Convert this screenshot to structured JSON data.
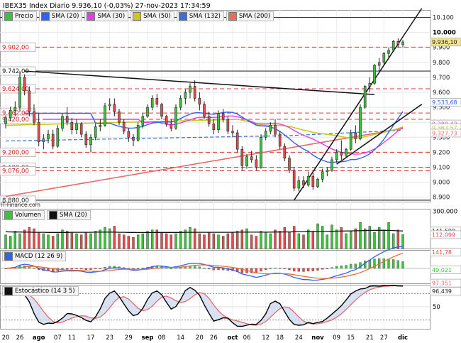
{
  "header": {
    "title": "IBEX35 Index Diario 9.936,10 (-0,03%) 27-nov-2023 17:34:59",
    "source": "IT-Finance.com"
  },
  "colors": {
    "up": "#3cc33c",
    "down": "#e84a4a",
    "sma20": "#2f62f0",
    "sma30": "#e63ce6",
    "sma50": "#c8c81e",
    "sma132": "#3a6fd8",
    "sma200": "#e86a6a",
    "macd": "#2f62f0",
    "signal": "#e86a2e",
    "stoch_k": "#000000",
    "stoch_d": "#e86a6a"
  },
  "chart_data": [
    {
      "type": "candlestick",
      "title": "IBEX35 Index Diario",
      "legend": [
        "Precio",
        "SMA (20)",
        "SMA (30)",
        "SMA (50)",
        "SMA (132)",
        "SMA (200)"
      ],
      "legend_colors": [
        "#3cc33c",
        "#2f62f0",
        "#e63ce6",
        "#c8c81e",
        "#3a6fd8",
        "#e86a6a"
      ],
      "x_ticks": [
        "20",
        "26",
        "ago",
        "07",
        "11",
        "17",
        "23",
        "29",
        "sep",
        "08",
        "14",
        "20",
        "26",
        "oct",
        "06",
        "12",
        "18",
        "24",
        "nov",
        "09",
        "15",
        "21",
        "27",
        "dic"
      ],
      "y_ticks": [
        "10.100",
        "10.000",
        "9.900",
        "9.800",
        "9.700",
        "9.600",
        "9.500",
        "9.400",
        "9.300",
        "9.200",
        "9.100",
        "9.000",
        "8.900"
      ],
      "ylim": [
        8870,
        10150
      ],
      "level_labels": [
        "9.902,00",
        "9.742,00",
        "9.624,00",
        "9.462,00",
        "9.420,00",
        "9.200,00",
        "9.100,00",
        "9.076,00",
        "8.880,00"
      ],
      "level_values": [
        9902,
        9742,
        9624,
        9462,
        9420,
        9200,
        9100,
        9076,
        8880
      ],
      "right_labels": [
        "9.936,10",
        "9.533,68",
        "9.388,43",
        "9.363,57",
        "9.327,73"
      ],
      "right_values": [
        9936.1,
        9533.68,
        9388.43,
        9363.57,
        9327.73
      ],
      "candles": [
        [
          9390,
          9445,
          9360,
          9430
        ],
        [
          9430,
          9505,
          9410,
          9480
        ],
        [
          9480,
          9540,
          9440,
          9500
        ],
        [
          9500,
          9742,
          9470,
          9700
        ],
        [
          9700,
          9720,
          9580,
          9610
        ],
        [
          9610,
          9640,
          9440,
          9470
        ],
        [
          9470,
          9520,
          9380,
          9400
        ],
        [
          9400,
          9460,
          9240,
          9270
        ],
        [
          9270,
          9320,
          9220,
          9290
        ],
        [
          9290,
          9350,
          9260,
          9320
        ],
        [
          9320,
          9350,
          9220,
          9240
        ],
        [
          9240,
          9380,
          9230,
          9360
        ],
        [
          9360,
          9460,
          9340,
          9440
        ],
        [
          9440,
          9500,
          9380,
          9400
        ],
        [
          9400,
          9430,
          9320,
          9350
        ],
        [
          9350,
          9420,
          9320,
          9390
        ],
        [
          9390,
          9400,
          9300,
          9320
        ],
        [
          9320,
          9340,
          9230,
          9250
        ],
        [
          9250,
          9320,
          9200,
          9300
        ],
        [
          9300,
          9390,
          9280,
          9370
        ],
        [
          9370,
          9420,
          9340,
          9380
        ],
        [
          9380,
          9530,
          9370,
          9510
        ],
        [
          9510,
          9560,
          9480,
          9520
        ],
        [
          9520,
          9560,
          9440,
          9470
        ],
        [
          9470,
          9490,
          9380,
          9400
        ],
        [
          9400,
          9420,
          9320,
          9340
        ],
        [
          9340,
          9360,
          9270,
          9300
        ],
        [
          9300,
          9320,
          9240,
          9280
        ],
        [
          9280,
          9400,
          9270,
          9380
        ],
        [
          9380,
          9460,
          9360,
          9440
        ],
        [
          9440,
          9520,
          9430,
          9500
        ],
        [
          9500,
          9580,
          9480,
          9560
        ],
        [
          9560,
          9590,
          9500,
          9520
        ],
        [
          9520,
          9530,
          9420,
          9440
        ],
        [
          9440,
          9450,
          9370,
          9390
        ],
        [
          9390,
          9420,
          9340,
          9360
        ],
        [
          9360,
          9520,
          9350,
          9500
        ],
        [
          9500,
          9580,
          9480,
          9560
        ],
        [
          9560,
          9620,
          9520,
          9600
        ],
        [
          9600,
          9660,
          9560,
          9640
        ],
        [
          9640,
          9680,
          9540,
          9560
        ],
        [
          9560,
          9600,
          9480,
          9520
        ],
        [
          9520,
          9540,
          9420,
          9440
        ],
        [
          9440,
          9470,
          9370,
          9390
        ],
        [
          9390,
          9420,
          9320,
          9350
        ],
        [
          9350,
          9480,
          9330,
          9460
        ],
        [
          9460,
          9490,
          9400,
          9420
        ],
        [
          9420,
          9440,
          9320,
          9340
        ],
        [
          9340,
          9380,
          9300,
          9330
        ],
        [
          9330,
          9350,
          9200,
          9220
        ],
        [
          9220,
          9240,
          9080,
          9110
        ],
        [
          9110,
          9190,
          9090,
          9170
        ],
        [
          9170,
          9210,
          9130,
          9150
        ],
        [
          9150,
          9180,
          9080,
          9100
        ],
        [
          9100,
          9320,
          9090,
          9300
        ],
        [
          9300,
          9360,
          9280,
          9340
        ],
        [
          9340,
          9400,
          9320,
          9380
        ],
        [
          9380,
          9420,
          9300,
          9320
        ],
        [
          9320,
          9340,
          9220,
          9240
        ],
        [
          9240,
          9260,
          9140,
          9160
        ],
        [
          9160,
          9180,
          9060,
          9080
        ],
        [
          9080,
          9100,
          8940,
          8960
        ],
        [
          8960,
          9040,
          8940,
          9010
        ],
        [
          9010,
          9040,
          8960,
          8980
        ],
        [
          8980,
          9070,
          8970,
          9040
        ],
        [
          9040,
          9060,
          8950,
          8970
        ],
        [
          8970,
          9030,
          8960,
          9020
        ],
        [
          9020,
          9090,
          9000,
          9070
        ],
        [
          9070,
          9100,
          9040,
          9080
        ],
        [
          9080,
          9170,
          9070,
          9150
        ],
        [
          9150,
          9220,
          9130,
          9200
        ],
        [
          9200,
          9280,
          9150,
          9180
        ],
        [
          9180,
          9230,
          9160,
          9220
        ],
        [
          9220,
          9350,
          9210,
          9330
        ],
        [
          9330,
          9380,
          9260,
          9290
        ],
        [
          9290,
          9520,
          9280,
          9500
        ],
        [
          9500,
          9650,
          9490,
          9640
        ],
        [
          9640,
          9700,
          9600,
          9660
        ],
        [
          9660,
          9790,
          9650,
          9780
        ],
        [
          9780,
          9830,
          9740,
          9800
        ],
        [
          9800,
          9870,
          9780,
          9860
        ],
        [
          9860,
          9900,
          9820,
          9880
        ],
        [
          9880,
          9950,
          9870,
          9940
        ],
        [
          9940,
          9960,
          9900,
          9920
        ],
        [
          9920,
          9950,
          9900,
          9936.1
        ]
      ]
    },
    {
      "type": "bar",
      "legend": [
        "Volumen",
        "SMA (20)"
      ],
      "y_ticks": [
        "300.000"
      ],
      "ylim": [
        0,
        320000
      ],
      "right_labels": [
        "141.599",
        "112.099"
      ],
      "right_values": [
        141599,
        112099
      ],
      "values": [
        110000,
        100000,
        140000,
        120000,
        150000,
        170000,
        160000,
        130000,
        120000,
        110000,
        100000,
        120000,
        150000,
        140000,
        130000,
        120000,
        110000,
        130000,
        120000,
        140000,
        150000,
        170000,
        160000,
        180000,
        120000,
        110000,
        100000,
        90000,
        110000,
        120000,
        140000,
        150000,
        150000,
        130000,
        120000,
        110000,
        120000,
        140000,
        150000,
        170000,
        160000,
        120000,
        110000,
        130000,
        120000,
        110000,
        100000,
        120000,
        130000,
        140000,
        150000,
        160000,
        110000,
        100000,
        140000,
        130000,
        120000,
        150000,
        140000,
        170000,
        130000,
        180000,
        120000,
        110000,
        150000,
        140000,
        200000,
        180000,
        110000,
        190000,
        150000,
        170000,
        120000,
        140000,
        160000,
        210000,
        160000,
        180000,
        130000,
        170000,
        150000,
        210000,
        120000,
        150000,
        112099
      ],
      "sma": [
        135000,
        134000,
        133000,
        133000,
        132000,
        132000,
        131000,
        131000,
        131000,
        130000,
        130000,
        130000,
        130000,
        130000,
        131000,
        131000,
        131000,
        131000,
        131000,
        132000,
        132000,
        132000,
        132000,
        132000,
        131000,
        131000,
        130000,
        130000,
        129000,
        129000,
        129000,
        129000,
        130000,
        130000,
        130000,
        130000,
        130000,
        130000,
        131000,
        131000,
        131000,
        131000,
        131000,
        131000,
        131000,
        131000,
        131000,
        131000,
        131000,
        132000,
        132000,
        132000,
        132000,
        132000,
        132000,
        132000,
        132000,
        133000,
        133000,
        134000,
        134000,
        135000,
        135000,
        135000,
        136000,
        136000,
        137000,
        138000,
        138000,
        139000,
        140000,
        141000,
        141000,
        142000,
        143000,
        144000,
        145000,
        146000,
        146000,
        147000,
        147000,
        146000,
        145000,
        143000,
        141599
      ]
    },
    {
      "type": "bar",
      "legend": [
        "MACD (12 26 9)"
      ],
      "right_labels": [
        "141,78",
        "49,021"
      ],
      "right_values": [
        141.78,
        49.021
      ]
    },
    {
      "type": "line",
      "legend": [
        "Estocástico (14 3 5)"
      ],
      "y_ticks": [
        "50"
      ],
      "ylim": [
        0,
        100
      ],
      "right_labels": [
        "97,351",
        "96,439"
      ],
      "right_values": [
        97.351,
        96.439
      ]
    }
  ]
}
